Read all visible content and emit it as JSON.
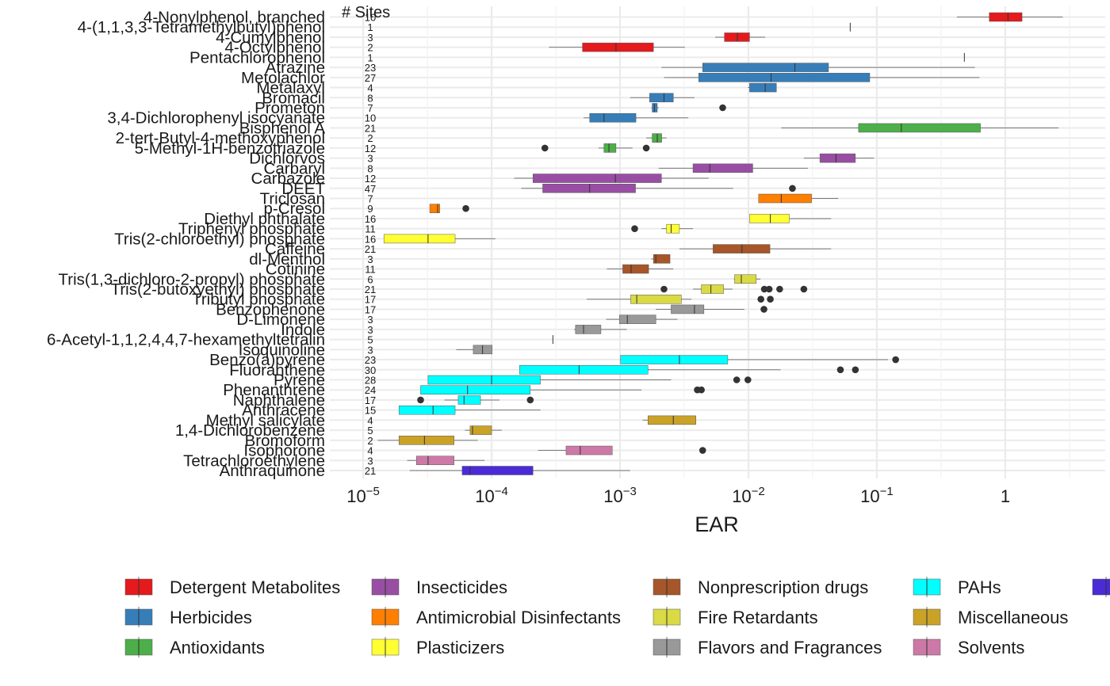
{
  "chart_data": {
    "type": "boxplot",
    "title": "",
    "xlabel": "EAR",
    "ylabel": "",
    "sites_header": "# Sites",
    "x_scale": "log10",
    "xlim": [
      5.5e-06,
      6.0
    ],
    "x_ticks": [
      {
        "value": 1e-05,
        "base": "10",
        "exp": "−5"
      },
      {
        "value": 0.0001,
        "base": "10",
        "exp": "−4"
      },
      {
        "value": 0.001,
        "base": "10",
        "exp": "−3"
      },
      {
        "value": 0.01,
        "base": "10",
        "exp": "−2"
      },
      {
        "value": 0.1,
        "base": "10",
        "exp": "−1"
      },
      {
        "value": 1,
        "base": "1",
        "exp": ""
      }
    ],
    "grid": true,
    "legend_position": "bottom",
    "categories": [
      {
        "name": "Detergent Metabolites",
        "color": "#E41A1C"
      },
      {
        "name": "Herbicides",
        "color": "#377EB8"
      },
      {
        "name": "Antioxidants",
        "color": "#4DAF4A"
      },
      {
        "name": "Insecticides",
        "color": "#984EA3"
      },
      {
        "name": "Antimicrobial Disinfectants",
        "color": "#FF7F00"
      },
      {
        "name": "Plasticizers",
        "color": "#FFFF33"
      },
      {
        "name": "Nonprescription drugs",
        "color": "#A65628"
      },
      {
        "name": "Fire Retardants",
        "color": "#DADA44"
      },
      {
        "name": "Flavors and Fragrances",
        "color": "#999999"
      },
      {
        "name": "PAHs",
        "color": "#00FFFF"
      },
      {
        "name": "Miscellaneous",
        "color": "#C9A227"
      },
      {
        "name": "Solvents",
        "color": "#CC79A7"
      },
      {
        "name": "",
        "color": "#4B2BD6"
      }
    ],
    "chemicals": [
      {
        "name": "4-Nonylphenol, branched",
        "sites": "10",
        "cat": 0,
        "wlo": 0.42,
        "q1": 0.75,
        "med": 1.05,
        "q3": 1.35,
        "whi": 2.8,
        "out": []
      },
      {
        "name": "4-(1,1,3,3-Tetramethylbutyl)phenol",
        "sites": "1",
        "cat": 0,
        "wlo": 0.062,
        "q1": 0.062,
        "med": 0.062,
        "q3": 0.062,
        "whi": 0.062,
        "out": []
      },
      {
        "name": "4-Cumylphenol",
        "sites": "3",
        "cat": 0,
        "wlo": 0.0055,
        "q1": 0.0065,
        "med": 0.0082,
        "q3": 0.0102,
        "whi": 0.0135,
        "out": []
      },
      {
        "name": "4-Octylphenol",
        "sites": "2",
        "cat": 0,
        "wlo": 0.00028,
        "q1": 0.00051,
        "med": 0.00093,
        "q3": 0.00182,
        "whi": 0.0032,
        "out": []
      },
      {
        "name": "Pentachlorophenol",
        "sites": "1",
        "cat": 0,
        "wlo": 0.48,
        "q1": 0.48,
        "med": 0.48,
        "q3": 0.48,
        "whi": 0.48,
        "out": []
      },
      {
        "name": "Atrazine",
        "sites": "23",
        "cat": 1,
        "wlo": 0.0021,
        "q1": 0.0044,
        "med": 0.023,
        "q3": 0.042,
        "whi": 0.58,
        "out": []
      },
      {
        "name": "Metolachlor",
        "sites": "27",
        "cat": 1,
        "wlo": 0.0022,
        "q1": 0.0041,
        "med": 0.015,
        "q3": 0.088,
        "whi": 0.63,
        "out": []
      },
      {
        "name": "Metalaxyl",
        "sites": "4",
        "cat": 1,
        "wlo": 0.0099,
        "q1": 0.0102,
        "med": 0.0135,
        "q3": 0.0165,
        "whi": 0.0165,
        "out": []
      },
      {
        "name": "Bromacil",
        "sites": "8",
        "cat": 1,
        "wlo": 0.0012,
        "q1": 0.0017,
        "med": 0.0022,
        "q3": 0.0026,
        "whi": 0.0038,
        "out": []
      },
      {
        "name": "Prometon",
        "sites": "7",
        "cat": 1,
        "wlo": 0.00175,
        "q1": 0.00178,
        "med": 0.00185,
        "q3": 0.00195,
        "whi": 0.002,
        "out": [
          0.0063
        ]
      },
      {
        "name": "3,4-Dichlorophenyl isocyanate",
        "sites": "10",
        "cat": 1,
        "wlo": 0.00052,
        "q1": 0.00058,
        "med": 0.00075,
        "q3": 0.00133,
        "whi": 0.0034,
        "out": []
      },
      {
        "name": "Bisphenol A",
        "sites": "21",
        "cat": 2,
        "wlo": 0.018,
        "q1": 0.072,
        "med": 0.155,
        "q3": 0.64,
        "whi": 2.6,
        "out": []
      },
      {
        "name": "2-tert-Butyl-4-methoxyphenol",
        "sites": "2",
        "cat": 2,
        "wlo": 0.0016,
        "q1": 0.00178,
        "med": 0.00195,
        "q3": 0.00211,
        "whi": 0.0023,
        "out": []
      },
      {
        "name": "5-Methyl-1H-benzotriazole",
        "sites": "12",
        "cat": 2,
        "wlo": 0.00068,
        "q1": 0.00075,
        "med": 0.00082,
        "q3": 0.00093,
        "whi": 0.00125,
        "out": [
          0.00026,
          0.0016
        ]
      },
      {
        "name": "Dichlorvos",
        "sites": "3",
        "cat": 3,
        "wlo": 0.027,
        "q1": 0.036,
        "med": 0.048,
        "q3": 0.068,
        "whi": 0.095,
        "out": []
      },
      {
        "name": "Carbaryl",
        "sites": "8",
        "cat": 3,
        "wlo": 0.002,
        "q1": 0.0037,
        "med": 0.005,
        "q3": 0.0108,
        "whi": 0.029,
        "out": []
      },
      {
        "name": "Carbazole",
        "sites": "12",
        "cat": 3,
        "wlo": 0.00015,
        "q1": 0.00021,
        "med": 0.00092,
        "q3": 0.0021,
        "whi": 0.0049,
        "out": []
      },
      {
        "name": "DEET",
        "sites": "47",
        "cat": 3,
        "wlo": 0.00017,
        "q1": 0.00025,
        "med": 0.00058,
        "q3": 0.00132,
        "whi": 0.0076,
        "out": [
          0.022
        ]
      },
      {
        "name": "Triclosan",
        "sites": "7",
        "cat": 4,
        "wlo": 0.012,
        "q1": 0.012,
        "med": 0.018,
        "q3": 0.031,
        "whi": 0.05,
        "out": []
      },
      {
        "name": "p-Cresol",
        "sites": "9",
        "cat": 4,
        "wlo": 3.3e-05,
        "q1": 3.3e-05,
        "med": 3.8e-05,
        "q3": 3.95e-05,
        "whi": 3.95e-05,
        "out": [
          6.3e-05
        ]
      },
      {
        "name": "Diethyl phthalate",
        "sites": "16",
        "cat": 5,
        "wlo": 0.0102,
        "q1": 0.0102,
        "med": 0.0148,
        "q3": 0.0208,
        "whi": 0.044,
        "out": []
      },
      {
        "name": "Triphenyl phosphate",
        "sites": "11",
        "cat": 5,
        "wlo": 0.0021,
        "q1": 0.0023,
        "med": 0.0025,
        "q3": 0.0029,
        "whi": 0.0037,
        "out": [
          0.0013
        ]
      },
      {
        "name": "Tris(2-chloroethyl) phosphate",
        "sites": "16",
        "cat": 5,
        "wlo": 1.45e-05,
        "q1": 1.45e-05,
        "med": 3.2e-05,
        "q3": 5.2e-05,
        "whi": 0.000107,
        "out": []
      },
      {
        "name": "Caffeine",
        "sites": "21",
        "cat": 6,
        "wlo": 0.0029,
        "q1": 0.0053,
        "med": 0.0089,
        "q3": 0.0147,
        "whi": 0.044,
        "out": []
      },
      {
        "name": "dl-Menthol",
        "sites": "3",
        "cat": 6,
        "wlo": 0.00175,
        "q1": 0.00182,
        "med": 0.0019,
        "q3": 0.00245,
        "whi": 0.00245,
        "out": []
      },
      {
        "name": "Cotinine",
        "sites": "11",
        "cat": 6,
        "wlo": 0.00079,
        "q1": 0.00105,
        "med": 0.00122,
        "q3": 0.00167,
        "whi": 0.0026,
        "out": []
      },
      {
        "name": "Tris(1,3-dichloro-2-propyl) phosphate",
        "sites": "6",
        "cat": 7,
        "wlo": 0.0077,
        "q1": 0.0078,
        "med": 0.0088,
        "q3": 0.0115,
        "whi": 0.0124,
        "out": []
      },
      {
        "name": "Tris(2-butoxyethyl) phosphate",
        "sites": "21",
        "cat": 7,
        "wlo": 0.0037,
        "q1": 0.0043,
        "med": 0.0051,
        "q3": 0.0064,
        "whi": 0.0075,
        "out": [
          0.0022,
          0.0133,
          0.0145,
          0.0175,
          0.027
        ]
      },
      {
        "name": "Tributyl phosphate",
        "sites": "17",
        "cat": 7,
        "wlo": 0.00055,
        "q1": 0.00121,
        "med": 0.00135,
        "q3": 0.003,
        "whi": 0.0036,
        "out": [
          0.0125,
          0.0148
        ]
      },
      {
        "name": "Benzophenone",
        "sites": "17",
        "cat": 8,
        "wlo": 0.0019,
        "q1": 0.0025,
        "med": 0.0038,
        "q3": 0.0045,
        "whi": 0.0093,
        "out": [
          0.0132
        ]
      },
      {
        "name": "D-Limonene",
        "sites": "3",
        "cat": 8,
        "wlo": 0.00078,
        "q1": 0.00099,
        "med": 0.00114,
        "q3": 0.0019,
        "whi": 0.0028,
        "out": []
      },
      {
        "name": "Indole",
        "sites": "3",
        "cat": 8,
        "wlo": 0.00044,
        "q1": 0.00045,
        "med": 0.00052,
        "q3": 0.00071,
        "whi": 0.00113,
        "out": []
      },
      {
        "name": "6-Acetyl-1,1,2,4,4,7-hexamethyltetralin",
        "sites": "5",
        "cat": 8,
        "wlo": 0.0003,
        "q1": 0.0003,
        "med": 0.0003,
        "q3": 0.0003,
        "whi": 0.0003,
        "out": []
      },
      {
        "name": "Isoquinoline",
        "sites": "3",
        "cat": 8,
        "wlo": 5.3e-05,
        "q1": 7.2e-05,
        "med": 8.5e-05,
        "q3": 0.000101,
        "whi": 0.000101,
        "out": []
      },
      {
        "name": "Benzo(a)pyrene",
        "sites": "23",
        "cat": 9,
        "wlo": 0.001,
        "q1": 0.00101,
        "med": 0.0029,
        "q3": 0.0069,
        "whi": 0.122,
        "out": [
          0.14
        ]
      },
      {
        "name": "Fluoranthene",
        "sites": "30",
        "cat": 9,
        "wlo": 0.000165,
        "q1": 0.000165,
        "med": 0.00048,
        "q3": 0.00165,
        "whi": 0.0178,
        "out": [
          0.052,
          0.068
        ]
      },
      {
        "name": "Pyrene",
        "sites": "28",
        "cat": 9,
        "wlo": 3.2e-05,
        "q1": 3.2e-05,
        "med": 0.0001,
        "q3": 0.00024,
        "whi": 0.0025,
        "out": [
          0.0081,
          0.0099
        ]
      },
      {
        "name": "Phenanthrene",
        "sites": "24",
        "cat": 9,
        "wlo": 2.8e-05,
        "q1": 2.8e-05,
        "med": 6.5e-05,
        "q3": 0.0002,
        "whi": 0.00147,
        "out": [
          0.004,
          0.0043
        ]
      },
      {
        "name": "Naphthalene",
        "sites": "17",
        "cat": 9,
        "wlo": 4.3e-05,
        "q1": 5.5e-05,
        "med": 6.1e-05,
        "q3": 8.2e-05,
        "whi": 0.000115,
        "out": [
          2.8e-05,
          0.0002
        ]
      },
      {
        "name": "Anthracene",
        "sites": "15",
        "cat": 9,
        "wlo": 1.9e-05,
        "q1": 1.9e-05,
        "med": 3.5e-05,
        "q3": 5.2e-05,
        "whi": 0.00024,
        "out": []
      },
      {
        "name": "Methyl salicylate",
        "sites": "4",
        "cat": 10,
        "wlo": 0.0015,
        "q1": 0.00165,
        "med": 0.0026,
        "q3": 0.0039,
        "whi": 0.0039,
        "out": []
      },
      {
        "name": "1,4-Dichlorobenzene",
        "sites": "5",
        "cat": 10,
        "wlo": 6.2e-05,
        "q1": 6.8e-05,
        "med": 7.1e-05,
        "q3": 0.0001,
        "whi": 0.00012,
        "out": []
      },
      {
        "name": "Bromoform",
        "sites": "2",
        "cat": 10,
        "wlo": 1.3e-05,
        "q1": 1.9e-05,
        "med": 3e-05,
        "q3": 5.1e-05,
        "whi": 7.8e-05,
        "out": []
      },
      {
        "name": "Isophorone",
        "sites": "4",
        "cat": 11,
        "wlo": 0.00023,
        "q1": 0.00038,
        "med": 0.00049,
        "q3": 0.00087,
        "whi": 0.00087,
        "out": [
          0.0044
        ]
      },
      {
        "name": "Tetrachloroethylene",
        "sites": "3",
        "cat": 11,
        "wlo": 2.2e-05,
        "q1": 2.6e-05,
        "med": 3.2e-05,
        "q3": 5.1e-05,
        "whi": 8.8e-05,
        "out": []
      },
      {
        "name": "Anthraquinone",
        "sites": "21",
        "cat": 12,
        "wlo": 2.3e-05,
        "q1": 5.9e-05,
        "med": 6.8e-05,
        "q3": 0.00021,
        "whi": 0.0012,
        "out": []
      }
    ]
  }
}
